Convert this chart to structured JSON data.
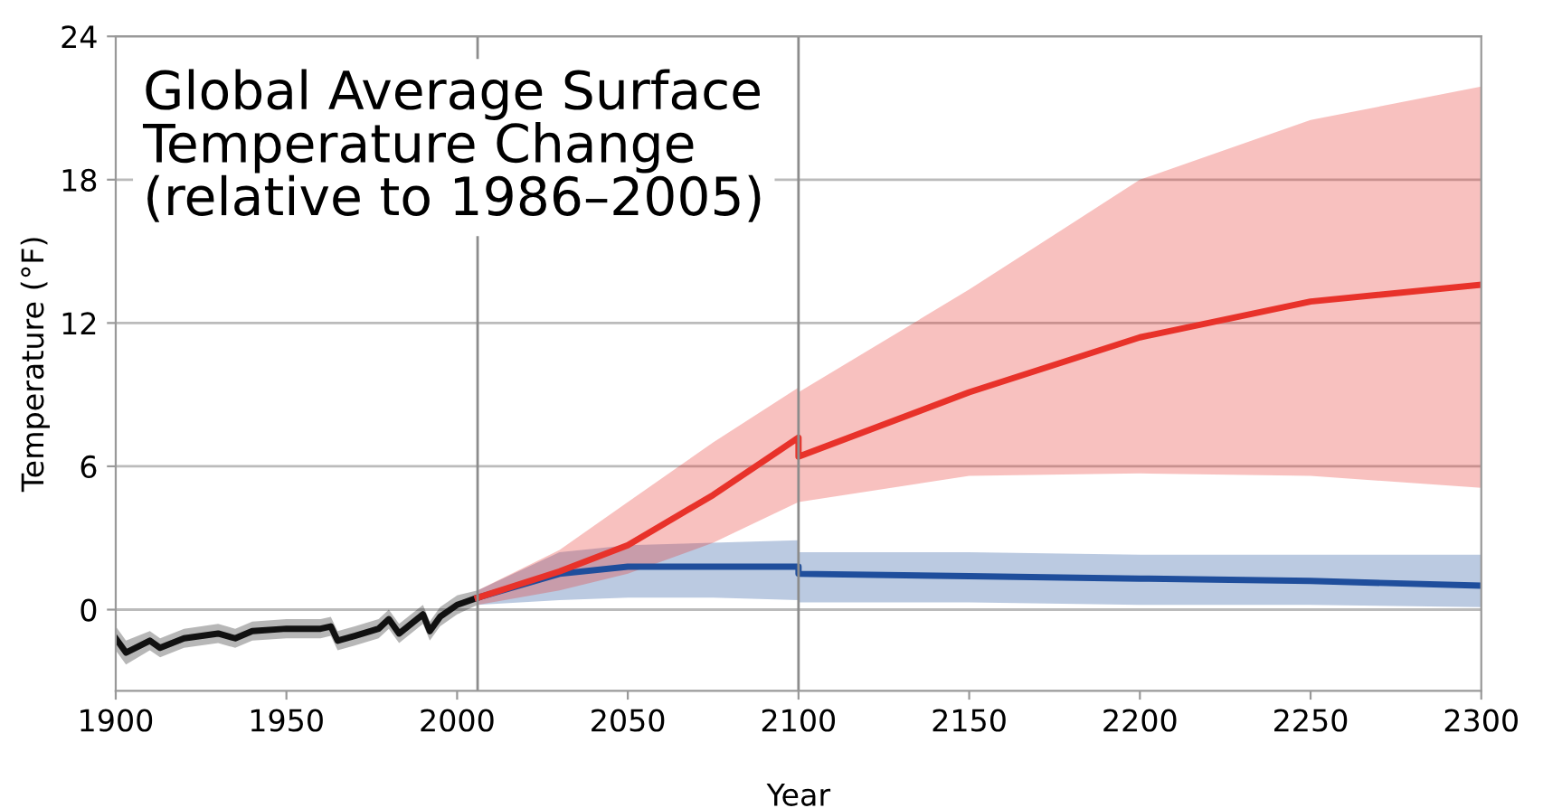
{
  "chart_data": {
    "type": "line",
    "title": "Global Average Surface\nTemperature Change\n(relative to 1986–2005)",
    "xlabel": "Year",
    "ylabel": "Temperature (°F)",
    "xlim": [
      1900,
      2300
    ],
    "xticks": [
      1900,
      1950,
      2000,
      2050,
      2100,
      2150,
      2200,
      2250,
      2300
    ],
    "ylim": [
      -3.4,
      24
    ],
    "yticks": [
      0,
      6,
      12,
      18,
      24
    ],
    "grid": "y",
    "legend": false,
    "ref_lines": [
      {
        "axis": "x",
        "value": 2006,
        "color": "#8c8c8c"
      },
      {
        "axis": "x",
        "value": 2100,
        "color": "#8c8c8c"
      }
    ],
    "series": [
      {
        "color": "#111111",
        "x": [
          1900,
          1903,
          1910,
          1913,
          1920,
          1930,
          1935,
          1940,
          1950,
          1960,
          1963,
          1965,
          1970,
          1977,
          1980,
          1983,
          1990,
          1992,
          1995,
          2000,
          2006
        ],
        "values": [
          -1.2,
          -1.8,
          -1.3,
          -1.6,
          -1.2,
          -1.0,
          -1.2,
          -0.9,
          -0.8,
          -0.8,
          -0.7,
          -1.3,
          -1.1,
          -0.8,
          -0.4,
          -1.0,
          -0.2,
          -0.9,
          -0.3,
          0.2,
          0.5
        ],
        "lower": [
          -1.7,
          -2.3,
          -1.7,
          -2.0,
          -1.6,
          -1.4,
          -1.6,
          -1.3,
          -1.2,
          -1.2,
          -1.1,
          -1.7,
          -1.5,
          -1.2,
          -0.8,
          -1.4,
          -0.6,
          -1.3,
          -0.7,
          -0.2,
          0.2
        ],
        "upper": [
          -0.7,
          -1.3,
          -0.9,
          -1.2,
          -0.8,
          -0.6,
          -0.8,
          -0.5,
          -0.4,
          -0.4,
          -0.3,
          -0.9,
          -0.7,
          -0.4,
          0.0,
          -0.6,
          0.2,
          -0.5,
          0.1,
          0.6,
          0.8
        ]
      },
      {
        "color": "#1f4e9c",
        "x": [
          2006,
          2030,
          2050,
          2075,
          2100,
          2100,
          2150,
          2200,
          2250,
          2300
        ],
        "values": [
          0.5,
          1.5,
          1.8,
          1.8,
          1.8,
          1.5,
          1.4,
          1.3,
          1.2,
          1.0
        ],
        "lower": [
          0.2,
          0.4,
          0.5,
          0.5,
          0.4,
          0.3,
          0.3,
          0.2,
          0.2,
          0.1
        ],
        "upper": [
          0.8,
          2.4,
          2.7,
          2.8,
          2.9,
          2.4,
          2.4,
          2.3,
          2.3,
          2.3
        ]
      },
      {
        "color": "#e8322a",
        "x": [
          2006,
          2030,
          2050,
          2075,
          2100,
          2100,
          2150,
          2200,
          2250,
          2300
        ],
        "values": [
          0.5,
          1.6,
          2.7,
          4.8,
          7.2,
          6.4,
          9.1,
          11.4,
          12.9,
          13.6
        ],
        "lower": [
          0.2,
          0.8,
          1.5,
          2.8,
          4.5,
          4.5,
          5.6,
          5.7,
          5.6,
          5.1
        ],
        "upper": [
          0.8,
          2.5,
          4.5,
          7.0,
          9.3,
          9.1,
          13.4,
          18.0,
          20.5,
          21.9
        ]
      }
    ]
  }
}
